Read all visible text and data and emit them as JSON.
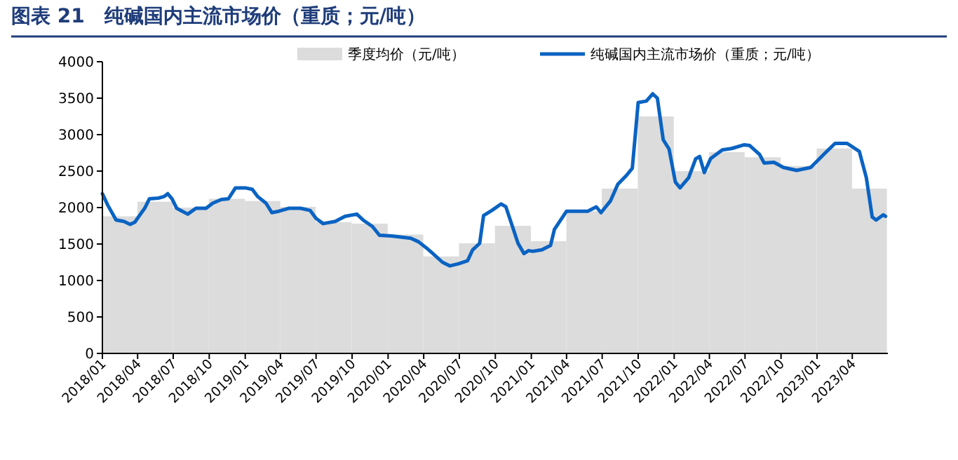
{
  "chart_data": {
    "type": "line",
    "title": "图表 21　纯碱国内主流市场价（重质；元/吨）",
    "legend": "top",
    "grid": false,
    "ylim": [
      0,
      4000
    ],
    "yticks": [
      0,
      500,
      1000,
      1500,
      2000,
      2500,
      3000,
      3500,
      4000
    ],
    "xlim": [
      "2018-01-01",
      "2023-07-01"
    ],
    "xticks": [
      {
        "value": "2018-01-01",
        "label": "2018/01"
      },
      {
        "value": "2018-04-01",
        "label": "2018/04"
      },
      {
        "value": "2018-07-01",
        "label": "2018/07"
      },
      {
        "value": "2018-10-01",
        "label": "2018/10"
      },
      {
        "value": "2019-01-01",
        "label": "2019/01"
      },
      {
        "value": "2019-04-01",
        "label": "2019/04"
      },
      {
        "value": "2019-07-01",
        "label": "2019/07"
      },
      {
        "value": "2019-10-01",
        "label": "2019/10"
      },
      {
        "value": "2020-01-01",
        "label": "2020/01"
      },
      {
        "value": "2020-04-01",
        "label": "2020/04"
      },
      {
        "value": "2020-07-01",
        "label": "2020/07"
      },
      {
        "value": "2020-10-01",
        "label": "2020/10"
      },
      {
        "value": "2021-01-01",
        "label": "2021/01"
      },
      {
        "value": "2021-04-01",
        "label": "2021/04"
      },
      {
        "value": "2021-07-01",
        "label": "2021/07"
      },
      {
        "value": "2021-10-01",
        "label": "2021/10"
      },
      {
        "value": "2022-01-01",
        "label": "2022/01"
      },
      {
        "value": "2022-04-01",
        "label": "2022/04"
      },
      {
        "value": "2022-07-01",
        "label": "2022/07"
      },
      {
        "value": "2022-10-01",
        "label": "2022/10"
      },
      {
        "value": "2023-01-01",
        "label": "2023/01"
      },
      {
        "value": "2023-04-01",
        "label": "2023/04"
      }
    ],
    "series": [
      {
        "name": "季度均价（元/吨）",
        "type": "bar",
        "color": "#dcdcdc",
        "x": [
          "2018-02-15",
          "2018-05-15",
          "2018-08-15",
          "2018-11-15",
          "2019-02-15",
          "2019-05-15",
          "2019-08-15",
          "2019-11-15",
          "2020-02-15",
          "2020-05-15",
          "2020-08-15",
          "2020-11-15",
          "2021-02-15",
          "2021-05-15",
          "2021-08-15",
          "2021-11-15",
          "2022-02-15",
          "2022-05-15",
          "2022-08-15",
          "2022-11-15",
          "2023-02-15",
          "2023-05-15"
        ],
        "values": [
          1880,
          2080,
          2000,
          2120,
          2090,
          2010,
          1800,
          1780,
          1630,
          1330,
          1510,
          1750,
          1540,
          1950,
          2260,
          3250,
          2500,
          2760,
          2690,
          2570,
          2810,
          2260
        ]
      },
      {
        "name": "纯碱国内主流市场价（重质；元/吨）",
        "color": "#0a63c2",
        "x": [
          "2018-01-01",
          "2018-01-15",
          "2018-02-05",
          "2018-02-25",
          "2018-03-13",
          "2018-03-25",
          "2018-04-07",
          "2018-04-19",
          "2018-05-01",
          "2018-05-24",
          "2018-06-07",
          "2018-06-17",
          "2018-06-28",
          "2018-07-10",
          "2018-08-07",
          "2018-08-28",
          "2018-09-23",
          "2018-10-10",
          "2018-11-01",
          "2018-11-19",
          "2018-12-07",
          "2019-01-01",
          "2019-01-19",
          "2019-02-02",
          "2019-02-23",
          "2019-03-10",
          "2019-03-28",
          "2019-04-22",
          "2019-05-22",
          "2019-06-16",
          "2019-07-01",
          "2019-07-19",
          "2019-08-19",
          "2019-09-13",
          "2019-10-13",
          "2019-10-29",
          "2019-11-22",
          "2019-12-10",
          "2020-01-10",
          "2020-02-28",
          "2020-03-19",
          "2020-04-07",
          "2020-04-22",
          "2020-05-19",
          "2020-06-07",
          "2020-06-29",
          "2020-07-22",
          "2020-08-04",
          "2020-08-22",
          "2020-09-01",
          "2020-09-22",
          "2020-10-16",
          "2020-10-28",
          "2020-11-10",
          "2020-11-28",
          "2020-12-13",
          "2020-12-25",
          "2021-01-04",
          "2021-01-28",
          "2021-02-19",
          "2021-03-01",
          "2021-04-01",
          "2021-05-25",
          "2021-06-16",
          "2021-06-28",
          "2021-07-22",
          "2021-08-10",
          "2021-09-01",
          "2021-09-16",
          "2021-10-01",
          "2021-10-22",
          "2021-11-07",
          "2021-11-19",
          "2021-12-04",
          "2021-12-19",
          "2022-01-04",
          "2022-01-16",
          "2022-02-07",
          "2022-02-25",
          "2022-03-07",
          "2022-03-19",
          "2022-04-04",
          "2022-05-04",
          "2022-05-28",
          "2022-06-28",
          "2022-07-13",
          "2022-08-07",
          "2022-08-19",
          "2022-09-13",
          "2022-10-07",
          "2022-11-10",
          "2022-12-16",
          "2023-01-22",
          "2023-02-16",
          "2023-03-19",
          "2023-04-19",
          "2023-05-07",
          "2023-05-22",
          "2023-06-01",
          "2023-06-19",
          "2023-06-25"
        ],
        "values": [
          2190,
          2030,
          1830,
          1810,
          1770,
          1800,
          1900,
          1990,
          2120,
          2130,
          2150,
          2190,
          2120,
          1990,
          1910,
          1990,
          1990,
          2060,
          2110,
          2120,
          2270,
          2270,
          2250,
          2150,
          2060,
          1930,
          1950,
          1990,
          1990,
          1960,
          1850,
          1780,
          1810,
          1880,
          1910,
          1830,
          1740,
          1620,
          1610,
          1580,
          1530,
          1450,
          1380,
          1250,
          1200,
          1230,
          1270,
          1420,
          1510,
          1890,
          1960,
          2050,
          2010,
          1800,
          1510,
          1370,
          1410,
          1400,
          1420,
          1480,
          1700,
          1950,
          1950,
          2010,
          1930,
          2090,
          2320,
          2440,
          2540,
          3440,
          3460,
          3560,
          3500,
          2930,
          2800,
          2350,
          2270,
          2410,
          2670,
          2700,
          2480,
          2670,
          2790,
          2810,
          2860,
          2850,
          2730,
          2610,
          2620,
          2550,
          2510,
          2550,
          2750,
          2880,
          2880,
          2770,
          2410,
          1870,
          1830,
          1900,
          1880
        ]
      }
    ]
  }
}
